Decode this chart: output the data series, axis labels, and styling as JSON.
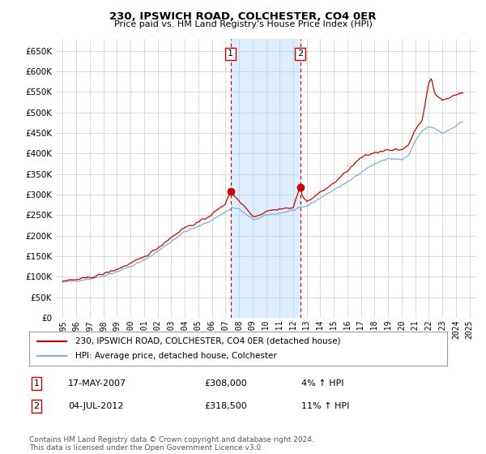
{
  "title": "230, IPSWICH ROAD, COLCHESTER, CO4 0ER",
  "subtitle": "Price paid vs. HM Land Registry's House Price Index (HPI)",
  "legend_line1": "230, IPSWICH ROAD, COLCHESTER, CO4 0ER (detached house)",
  "legend_line2": "HPI: Average price, detached house, Colchester",
  "annotation1": {
    "label": "1",
    "date": "17-MAY-2007",
    "price": "£308,000",
    "pct": "4% ↑ HPI",
    "x": 2007.38
  },
  "annotation2": {
    "label": "2",
    "date": "04-JUL-2012",
    "price": "£318,500",
    "pct": "11% ↑ HPI",
    "x": 2012.51
  },
  "sale1_y": 308000,
  "sale2_y": 318500,
  "footnote": "Contains HM Land Registry data © Crown copyright and database right 2024.\nThis data is licensed under the Open Government Licence v3.0.",
  "ylim": [
    0,
    680000
  ],
  "yticks": [
    0,
    50000,
    100000,
    150000,
    200000,
    250000,
    300000,
    350000,
    400000,
    450000,
    500000,
    550000,
    600000,
    650000
  ],
  "xlim": [
    1994.5,
    2025.5
  ],
  "red_color": "#cc0000",
  "blue_color": "#7bafd4",
  "shade_color": "#ddeeff",
  "grid_color": "#cccccc",
  "background_color": "#ffffff"
}
